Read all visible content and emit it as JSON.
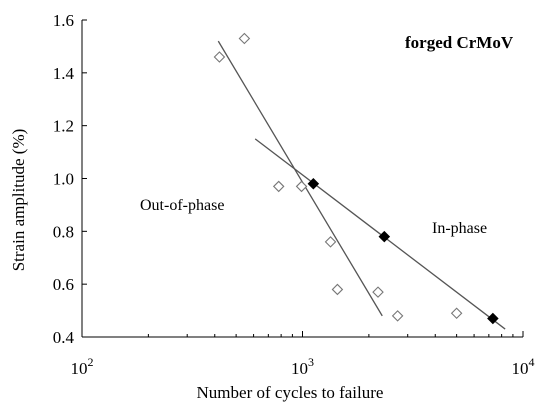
{
  "chart_data": {
    "type": "scatter",
    "x_scale": "log",
    "xlabel": "Number of cycles to failure",
    "ylabel": "Strain amplitude (%)",
    "xlim": [
      100,
      10000
    ],
    "ylim": [
      0.4,
      1.6
    ],
    "x_ticks": [
      {
        "value": 100,
        "base": "10",
        "exp": "2"
      },
      {
        "value": 1000,
        "base": "10",
        "exp": "3"
      },
      {
        "value": 10000,
        "base": "10",
        "exp": "4"
      }
    ],
    "y_ticks": [
      "0.4",
      "0.6",
      "0.8",
      "1.0",
      "1.2",
      "1.4",
      "1.6"
    ],
    "grid": false,
    "annotations": {
      "material": "forged CrMoV",
      "out_of_phase": "Out-of-phase",
      "in_phase": "In-phase"
    },
    "series": [
      {
        "marker": "open-diamond",
        "points": [
          [
            420,
            1.46
          ],
          [
            545,
            1.53
          ],
          [
            780,
            0.97
          ],
          [
            990,
            0.97
          ],
          [
            1340,
            0.76
          ],
          [
            1440,
            0.58
          ],
          [
            2200,
            0.57
          ],
          [
            2700,
            0.48
          ],
          [
            5000,
            0.49
          ]
        ],
        "fit_line": [
          [
            415,
            1.52
          ],
          [
            2300,
            0.48
          ]
        ]
      },
      {
        "marker": "filled-diamond",
        "points": [
          [
            1120,
            0.98
          ],
          [
            2350,
            0.78
          ],
          [
            7300,
            0.47
          ]
        ],
        "fit_line": [
          [
            610,
            1.15
          ],
          [
            8300,
            0.43
          ]
        ]
      }
    ]
  }
}
